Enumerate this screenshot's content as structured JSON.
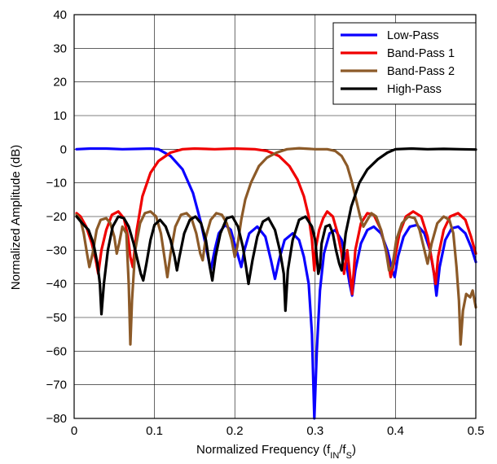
{
  "chart_data": {
    "type": "line",
    "title": "",
    "xlabel": {
      "main": "Normalized Frequency (f",
      "sub1": "IN",
      "mid": "/f",
      "sub2": "S",
      "end": ")"
    },
    "ylabel": "Normalized Amplitude (dB)",
    "xlim": [
      0,
      0.5
    ],
    "ylim": [
      -80,
      40
    ],
    "xticks": [
      {
        "value": 0,
        "label": "0"
      },
      {
        "value": 0.1,
        "label": "0.1"
      },
      {
        "value": 0.2,
        "label": "0.2"
      },
      {
        "value": 0.3,
        "label": "0.3"
      },
      {
        "value": 0.4,
        "label": "0.4"
      },
      {
        "value": 0.5,
        "label": "0.5"
      }
    ],
    "yticks": [
      {
        "value": 40,
        "label": "40"
      },
      {
        "value": 30,
        "label": "30"
      },
      {
        "value": 20,
        "label": "20"
      },
      {
        "value": 10,
        "label": "10"
      },
      {
        "value": 0,
        "label": "0"
      },
      {
        "value": -10,
        "label": "−10"
      },
      {
        "value": -20,
        "label": "−20"
      },
      {
        "value": -30,
        "label": "−30"
      },
      {
        "value": -40,
        "label": "−40"
      },
      {
        "value": -50,
        "label": "−50"
      },
      {
        "value": -60,
        "label": "−60"
      },
      {
        "value": -70,
        "label": "−70"
      },
      {
        "value": -80,
        "label": "−80"
      }
    ],
    "grid": true,
    "legend_position": "top-right",
    "series": [
      {
        "name": "Low-Pass",
        "color": "#0a00ff",
        "points": [
          [
            0.003,
            0
          ],
          [
            0.02,
            0.2
          ],
          [
            0.04,
            0.2
          ],
          [
            0.06,
            0
          ],
          [
            0.08,
            0.1
          ],
          [
            0.095,
            0.2
          ],
          [
            0.105,
            0
          ],
          [
            0.12,
            -2
          ],
          [
            0.135,
            -6
          ],
          [
            0.148,
            -13
          ],
          [
            0.158,
            -22
          ],
          [
            0.165,
            -30
          ],
          [
            0.17,
            -36
          ],
          [
            0.175,
            -30
          ],
          [
            0.18,
            -25
          ],
          [
            0.188,
            -22.5
          ],
          [
            0.195,
            -24
          ],
          [
            0.202,
            -30
          ],
          [
            0.208,
            -35
          ],
          [
            0.212,
            -30
          ],
          [
            0.218,
            -25
          ],
          [
            0.228,
            -23
          ],
          [
            0.238,
            -26
          ],
          [
            0.245,
            -33
          ],
          [
            0.25,
            -38.5
          ],
          [
            0.255,
            -33
          ],
          [
            0.262,
            -27
          ],
          [
            0.272,
            -25
          ],
          [
            0.28,
            -27
          ],
          [
            0.286,
            -32
          ],
          [
            0.292,
            -40
          ],
          [
            0.296,
            -55
          ],
          [
            0.299,
            -80
          ],
          [
            0.302,
            -60
          ],
          [
            0.306,
            -42
          ],
          [
            0.311,
            -31
          ],
          [
            0.318,
            -25
          ],
          [
            0.325,
            -24
          ],
          [
            0.333,
            -27
          ],
          [
            0.338,
            -33
          ],
          [
            0.343,
            -40
          ],
          [
            0.346,
            -43.5
          ],
          [
            0.35,
            -36
          ],
          [
            0.357,
            -28
          ],
          [
            0.365,
            -24
          ],
          [
            0.373,
            -23
          ],
          [
            0.382,
            -25
          ],
          [
            0.39,
            -30
          ],
          [
            0.396,
            -36
          ],
          [
            0.399,
            -38
          ],
          [
            0.403,
            -32
          ],
          [
            0.41,
            -26
          ],
          [
            0.418,
            -23
          ],
          [
            0.427,
            -22.5
          ],
          [
            0.436,
            -25
          ],
          [
            0.443,
            -30
          ],
          [
            0.448,
            -37
          ],
          [
            0.451,
            -43.5
          ],
          [
            0.455,
            -35
          ],
          [
            0.462,
            -27
          ],
          [
            0.47,
            -23.5
          ],
          [
            0.478,
            -23
          ],
          [
            0.487,
            -25
          ],
          [
            0.494,
            -29
          ],
          [
            0.5,
            -33.5
          ]
        ]
      },
      {
        "name": "Band-Pass 1",
        "color": "#f00000",
        "points": [
          [
            0.003,
            -19
          ],
          [
            0.008,
            -20
          ],
          [
            0.015,
            -23
          ],
          [
            0.022,
            -28
          ],
          [
            0.027,
            -33
          ],
          [
            0.03,
            -37
          ],
          [
            0.034,
            -30
          ],
          [
            0.04,
            -24
          ],
          [
            0.047,
            -19.5
          ],
          [
            0.055,
            -18.5
          ],
          [
            0.062,
            -20.5
          ],
          [
            0.067,
            -26
          ],
          [
            0.07,
            -32
          ],
          [
            0.073,
            -35
          ],
          [
            0.078,
            -24
          ],
          [
            0.085,
            -14
          ],
          [
            0.095,
            -7
          ],
          [
            0.105,
            -3.5
          ],
          [
            0.12,
            -1
          ],
          [
            0.135,
            0
          ],
          [
            0.15,
            0.2
          ],
          [
            0.175,
            0
          ],
          [
            0.2,
            0.2
          ],
          [
            0.225,
            0
          ],
          [
            0.24,
            -0.5
          ],
          [
            0.255,
            -2
          ],
          [
            0.268,
            -5
          ],
          [
            0.278,
            -9
          ],
          [
            0.286,
            -14
          ],
          [
            0.292,
            -20
          ],
          [
            0.296,
            -27
          ],
          [
            0.299,
            -36
          ],
          [
            0.301,
            -29
          ],
          [
            0.305,
            -24
          ],
          [
            0.31,
            -20.5
          ],
          [
            0.315,
            -18.5
          ],
          [
            0.322,
            -20
          ],
          [
            0.328,
            -25
          ],
          [
            0.333,
            -31
          ],
          [
            0.336,
            -37
          ],
          [
            0.34,
            -30
          ],
          [
            0.346,
            -43
          ],
          [
            0.35,
            -30
          ],
          [
            0.357,
            -22
          ],
          [
            0.365,
            -19
          ],
          [
            0.373,
            -19.5
          ],
          [
            0.382,
            -24
          ],
          [
            0.39,
            -32
          ],
          [
            0.394,
            -38
          ],
          [
            0.398,
            -34
          ],
          [
            0.405,
            -25
          ],
          [
            0.413,
            -20
          ],
          [
            0.422,
            -18.5
          ],
          [
            0.432,
            -20
          ],
          [
            0.44,
            -26
          ],
          [
            0.446,
            -34
          ],
          [
            0.45,
            -40
          ],
          [
            0.453,
            -32
          ],
          [
            0.46,
            -24
          ],
          [
            0.468,
            -20
          ],
          [
            0.478,
            -19
          ],
          [
            0.487,
            -21
          ],
          [
            0.494,
            -26
          ],
          [
            0.5,
            -31
          ]
        ]
      },
      {
        "name": "Band-Pass 2",
        "color": "#8c5a28",
        "points": [
          [
            0.003,
            -19.5
          ],
          [
            0.008,
            -21
          ],
          [
            0.012,
            -25
          ],
          [
            0.016,
            -31
          ],
          [
            0.019,
            -35
          ],
          [
            0.023,
            -31
          ],
          [
            0.028,
            -24
          ],
          [
            0.033,
            -21
          ],
          [
            0.04,
            -20.5
          ],
          [
            0.045,
            -22
          ],
          [
            0.05,
            -26
          ],
          [
            0.053,
            -31
          ],
          [
            0.056,
            -28
          ],
          [
            0.06,
            -23
          ],
          [
            0.065,
            -25
          ],
          [
            0.068,
            -40
          ],
          [
            0.07,
            -58
          ],
          [
            0.072,
            -45
          ],
          [
            0.076,
            -30
          ],
          [
            0.082,
            -22
          ],
          [
            0.088,
            -19
          ],
          [
            0.095,
            -18.5
          ],
          [
            0.102,
            -20
          ],
          [
            0.108,
            -25
          ],
          [
            0.113,
            -33
          ],
          [
            0.116,
            -38
          ],
          [
            0.12,
            -31
          ],
          [
            0.126,
            -23
          ],
          [
            0.133,
            -19.5
          ],
          [
            0.14,
            -19
          ],
          [
            0.146,
            -20.5
          ],
          [
            0.152,
            -25
          ],
          [
            0.157,
            -31
          ],
          [
            0.16,
            -33
          ],
          [
            0.164,
            -26
          ],
          [
            0.17,
            -21
          ],
          [
            0.177,
            -19
          ],
          [
            0.184,
            -19.5
          ],
          [
            0.19,
            -22
          ],
          [
            0.196,
            -27
          ],
          [
            0.2,
            -32
          ],
          [
            0.203,
            -29
          ],
          [
            0.208,
            -21
          ],
          [
            0.213,
            -15
          ],
          [
            0.22,
            -10
          ],
          [
            0.23,
            -5
          ],
          [
            0.24,
            -2.5
          ],
          [
            0.252,
            -1
          ],
          [
            0.265,
            0
          ],
          [
            0.28,
            0.3
          ],
          [
            0.3,
            0
          ],
          [
            0.315,
            0
          ],
          [
            0.325,
            -0.5
          ],
          [
            0.333,
            -2
          ],
          [
            0.34,
            -5
          ],
          [
            0.346,
            -10
          ],
          [
            0.352,
            -16
          ],
          [
            0.356,
            -20
          ],
          [
            0.36,
            -23
          ],
          [
            0.365,
            -21
          ],
          [
            0.37,
            -19
          ],
          [
            0.376,
            -20
          ],
          [
            0.382,
            -24
          ],
          [
            0.388,
            -30
          ],
          [
            0.392,
            -36
          ],
          [
            0.396,
            -35
          ],
          [
            0.401,
            -27
          ],
          [
            0.408,
            -22
          ],
          [
            0.416,
            -20
          ],
          [
            0.424,
            -20.5
          ],
          [
            0.43,
            -24
          ],
          [
            0.436,
            -30
          ],
          [
            0.44,
            -34
          ],
          [
            0.445,
            -28
          ],
          [
            0.452,
            -22
          ],
          [
            0.46,
            -20
          ],
          [
            0.467,
            -21
          ],
          [
            0.472,
            -25
          ],
          [
            0.476,
            -35
          ],
          [
            0.479,
            -45
          ],
          [
            0.481,
            -58
          ],
          [
            0.484,
            -48
          ],
          [
            0.488,
            -43
          ],
          [
            0.493,
            -44
          ],
          [
            0.496,
            -42
          ],
          [
            0.5,
            -47
          ]
        ]
      },
      {
        "name": "High-Pass",
        "color": "#000000",
        "points": [
          [
            0.003,
            -20
          ],
          [
            0.01,
            -22
          ],
          [
            0.018,
            -24
          ],
          [
            0.024,
            -28
          ],
          [
            0.029,
            -34
          ],
          [
            0.032,
            -40
          ],
          [
            0.034,
            -49
          ],
          [
            0.037,
            -40
          ],
          [
            0.042,
            -30
          ],
          [
            0.048,
            -23
          ],
          [
            0.055,
            -20
          ],
          [
            0.062,
            -20.5
          ],
          [
            0.068,
            -23
          ],
          [
            0.074,
            -28
          ],
          [
            0.079,
            -33
          ],
          [
            0.083,
            -37
          ],
          [
            0.086,
            -39
          ],
          [
            0.09,
            -34
          ],
          [
            0.095,
            -27
          ],
          [
            0.1,
            -22.5
          ],
          [
            0.107,
            -21
          ],
          [
            0.114,
            -23
          ],
          [
            0.12,
            -27
          ],
          [
            0.125,
            -32
          ],
          [
            0.128,
            -36
          ],
          [
            0.131,
            -32
          ],
          [
            0.137,
            -25
          ],
          [
            0.144,
            -21
          ],
          [
            0.151,
            -20
          ],
          [
            0.158,
            -22
          ],
          [
            0.164,
            -27
          ],
          [
            0.169,
            -35
          ],
          [
            0.172,
            -39
          ],
          [
            0.176,
            -32
          ],
          [
            0.182,
            -25
          ],
          [
            0.19,
            -20.5
          ],
          [
            0.197,
            -20
          ],
          [
            0.204,
            -23
          ],
          [
            0.21,
            -29
          ],
          [
            0.214,
            -35
          ],
          [
            0.217,
            -40
          ],
          [
            0.222,
            -33
          ],
          [
            0.228,
            -26
          ],
          [
            0.235,
            -21.5
          ],
          [
            0.242,
            -20.5
          ],
          [
            0.25,
            -24
          ],
          [
            0.256,
            -30
          ],
          [
            0.261,
            -37
          ],
          [
            0.263,
            -48
          ],
          [
            0.266,
            -36
          ],
          [
            0.272,
            -27
          ],
          [
            0.28,
            -21
          ],
          [
            0.288,
            -20
          ],
          [
            0.296,
            -23
          ],
          [
            0.3,
            -27
          ],
          [
            0.302,
            -32
          ],
          [
            0.304,
            -37
          ],
          [
            0.306,
            -35
          ],
          [
            0.308,
            -28
          ],
          [
            0.313,
            -23
          ],
          [
            0.318,
            -22.5
          ],
          [
            0.322,
            -25
          ],
          [
            0.326,
            -30
          ],
          [
            0.33,
            -34
          ],
          [
            0.333,
            -36
          ],
          [
            0.338,
            -25
          ],
          [
            0.345,
            -17
          ],
          [
            0.355,
            -10
          ],
          [
            0.365,
            -6
          ],
          [
            0.378,
            -3
          ],
          [
            0.39,
            -1
          ],
          [
            0.4,
            0
          ],
          [
            0.42,
            0.2
          ],
          [
            0.44,
            0
          ],
          [
            0.46,
            0.1
          ],
          [
            0.48,
            0
          ],
          [
            0.5,
            -0.1
          ]
        ]
      }
    ]
  }
}
